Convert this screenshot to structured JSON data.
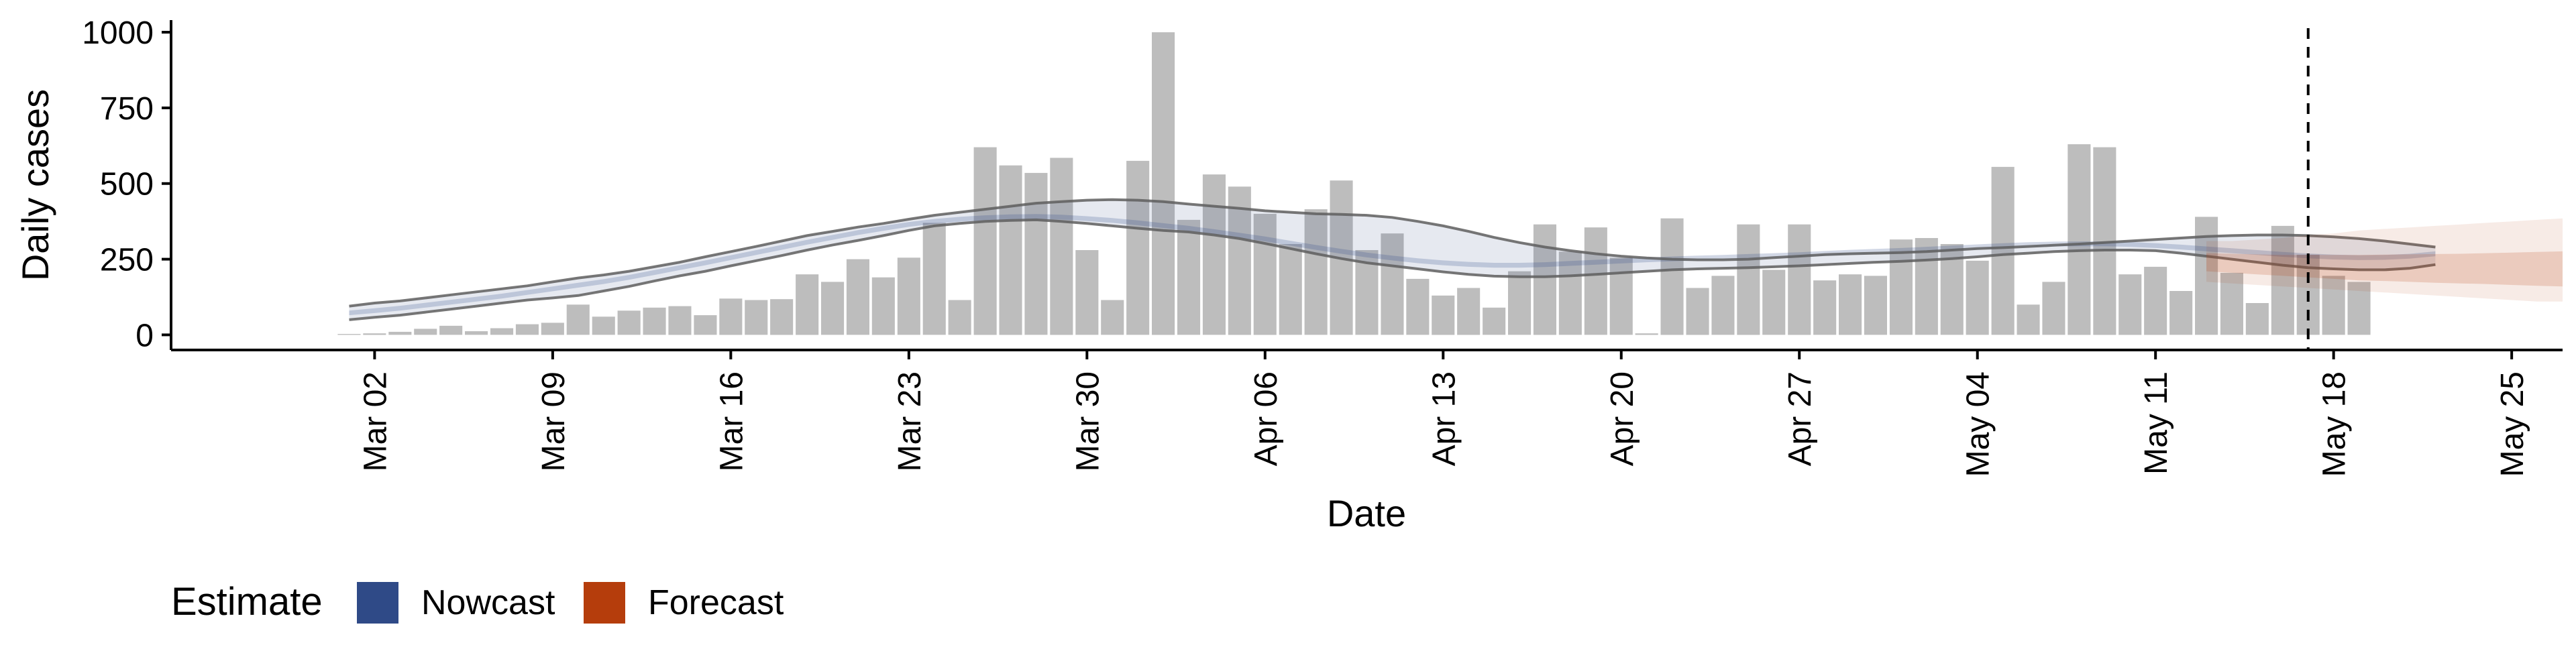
{
  "colors": {
    "bar": "#bdbdbd",
    "nowcast": "#2f4a87",
    "forecast": "#b53d0c",
    "outline": "#5e5e5e",
    "axis": "#000000"
  },
  "legend": {
    "title": "Estimate",
    "items": [
      {
        "label": "Nowcast",
        "color": "#2f4a87"
      },
      {
        "label": "Forecast",
        "color": "#b53d0c"
      }
    ]
  },
  "chart_data": {
    "type": "bar",
    "title": "",
    "xlabel": "Date",
    "ylabel": "Daily cases",
    "ylim": [
      -50,
      1040
    ],
    "xlim": [
      "2020-02-23",
      "2020-05-27"
    ],
    "yticks": [
      0,
      250,
      500,
      750,
      1000
    ],
    "xticks": [
      {
        "date": "2020-03-02",
        "label": "Mar 02"
      },
      {
        "date": "2020-03-09",
        "label": "Mar 09"
      },
      {
        "date": "2020-03-16",
        "label": "Mar 16"
      },
      {
        "date": "2020-03-23",
        "label": "Mar 23"
      },
      {
        "date": "2020-03-30",
        "label": "Mar 30"
      },
      {
        "date": "2020-04-06",
        "label": "Apr 06"
      },
      {
        "date": "2020-04-13",
        "label": "Apr 13"
      },
      {
        "date": "2020-04-20",
        "label": "Apr 20"
      },
      {
        "date": "2020-04-27",
        "label": "Apr 27"
      },
      {
        "date": "2020-05-04",
        "label": "May 04"
      },
      {
        "date": "2020-05-11",
        "label": "May 11"
      },
      {
        "date": "2020-05-18",
        "label": "May 18"
      },
      {
        "date": "2020-05-25",
        "label": "May 25"
      }
    ],
    "grid": false,
    "legend_position": "bottom-left",
    "reported_cases": {
      "start_date": "2020-03-01",
      "values": [
        3,
        5,
        10,
        20,
        30,
        12,
        22,
        35,
        40,
        100,
        60,
        80,
        90,
        95,
        65,
        120,
        115,
        118,
        200,
        175,
        250,
        190,
        255,
        370,
        115,
        620,
        560,
        535,
        585,
        280,
        115,
        575,
        1000,
        380,
        530,
        490,
        400,
        300,
        415,
        510,
        280,
        335,
        185,
        130,
        155,
        90,
        210,
        365,
        275,
        355,
        255,
        5,
        385,
        155,
        195,
        365,
        215,
        365,
        180,
        200,
        195,
        315,
        320,
        300,
        245,
        555,
        100,
        175,
        630,
        620,
        200,
        225,
        145,
        390,
        205,
        105,
        360,
        265,
        195,
        175
      ]
    },
    "nowcast": {
      "start_date": "2020-03-01",
      "outer_lower": [
        50,
        58,
        65,
        75,
        85,
        95,
        105,
        115,
        122,
        130,
        145,
        160,
        178,
        195,
        210,
        228,
        245,
        262,
        280,
        297,
        312,
        328,
        345,
        360,
        368,
        375,
        378,
        380,
        375,
        368,
        360,
        352,
        345,
        340,
        330,
        318,
        302,
        285,
        268,
        252,
        238,
        228,
        218,
        208,
        200,
        194,
        192,
        192,
        195,
        200,
        205,
        210,
        215,
        218,
        220,
        222,
        225,
        228,
        232,
        236,
        240,
        243,
        247,
        252,
        258,
        265,
        270,
        275,
        278,
        280,
        280,
        278,
        270,
        260,
        250,
        240,
        230,
        222,
        218,
        215,
        215,
        220,
        232
      ],
      "outer_upper": [
        95,
        105,
        112,
        122,
        132,
        142,
        152,
        162,
        175,
        188,
        198,
        210,
        225,
        240,
        258,
        275,
        292,
        310,
        328,
        342,
        356,
        368,
        382,
        395,
        405,
        415,
        425,
        435,
        440,
        445,
        447,
        445,
        440,
        432,
        425,
        418,
        410,
        405,
        400,
        398,
        395,
        388,
        375,
        360,
        342,
        322,
        305,
        290,
        278,
        268,
        260,
        254,
        250,
        248,
        248,
        250,
        255,
        260,
        265,
        268,
        270,
        272,
        275,
        280,
        285,
        288,
        292,
        296,
        300,
        305,
        310,
        315,
        320,
        325,
        328,
        330,
        330,
        328,
        324,
        318,
        310,
        300,
        290
      ],
      "inner_lower": [
        65,
        72,
        80,
        90,
        100,
        110,
        120,
        132,
        144,
        156,
        168,
        182,
        198,
        214,
        230,
        247,
        264,
        281,
        298,
        314,
        330,
        344,
        357,
        367,
        374,
        379,
        382,
        383,
        381,
        376,
        370,
        362,
        353,
        344,
        333,
        321,
        309,
        295,
        281,
        268,
        256,
        246,
        237,
        230,
        225,
        222,
        222,
        224,
        228,
        232,
        236,
        240,
        243,
        246,
        248,
        251,
        254,
        257,
        261,
        265,
        268,
        271,
        275,
        279,
        283,
        287,
        290,
        292,
        293,
        293,
        291,
        287,
        282,
        276,
        270,
        264,
        258,
        253,
        249,
        247,
        248,
        252,
        260
      ],
      "inner_upper": [
        80,
        88,
        96,
        106,
        116,
        126,
        136,
        148,
        160,
        172,
        184,
        198,
        214,
        230,
        246,
        263,
        280,
        297,
        314,
        330,
        346,
        360,
        373,
        383,
        390,
        395,
        398,
        399,
        397,
        392,
        386,
        378,
        369,
        360,
        349,
        337,
        325,
        311,
        297,
        284,
        272,
        262,
        253,
        246,
        241,
        238,
        238,
        240,
        244,
        248,
        252,
        256,
        259,
        262,
        264,
        267,
        270,
        273,
        277,
        281,
        284,
        287,
        291,
        295,
        299,
        303,
        306,
        308,
        309,
        309,
        307,
        303,
        298,
        292,
        286,
        280,
        274,
        269,
        265,
        263,
        264,
        268,
        276
      ]
    },
    "forecast": {
      "start_date": "2020-05-13",
      "outer_lower": [
        175,
        170,
        165,
        160,
        155,
        150,
        145,
        140,
        135,
        130,
        125,
        120,
        115,
        110,
        110
      ],
      "outer_upper": [
        310,
        310,
        315,
        320,
        330,
        335,
        345,
        350,
        355,
        360,
        365,
        370,
        375,
        380,
        385
      ],
      "inner_lower": [
        210,
        205,
        200,
        195,
        190,
        185,
        180,
        178,
        175,
        172,
        170,
        168,
        165,
        162,
        160
      ],
      "inner_upper": [
        270,
        268,
        266,
        264,
        264,
        264,
        264,
        265,
        266,
        267,
        268,
        270,
        272,
        274,
        276
      ]
    },
    "reference_line": {
      "date": "2020-05-17"
    }
  }
}
